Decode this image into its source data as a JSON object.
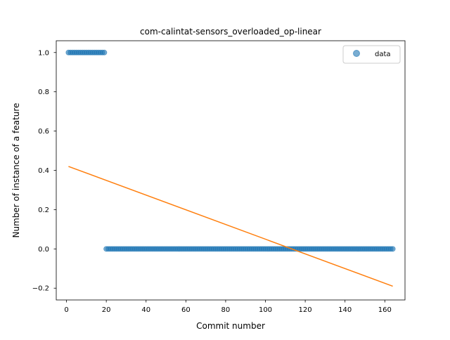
{
  "chart_data": {
    "type": "scatter",
    "title": "com-calintat-sensors_overloaded_op-linear",
    "xlabel": "Commit number",
    "ylabel": "Number of instance of a feature",
    "xlim": [
      -5.15,
      170.15
    ],
    "ylim": [
      -0.26,
      1.06
    ],
    "x_ticks": [
      0,
      20,
      40,
      60,
      80,
      100,
      120,
      140,
      160
    ],
    "x_tick_labels": [
      "0",
      "20",
      "40",
      "60",
      "80",
      "100",
      "120",
      "140",
      "160"
    ],
    "y_ticks": [
      -0.2,
      0.0,
      0.2,
      0.4,
      0.6,
      0.8,
      1.0
    ],
    "y_tick_labels": [
      "−0.2",
      "0.0",
      "0.2",
      "0.4",
      "0.6",
      "0.8",
      "1.0"
    ],
    "grid": false,
    "legend_position": "top-right",
    "series": [
      {
        "name": "data",
        "kind": "scatter",
        "color": "#1f77b4",
        "segments": [
          {
            "x_start": 1,
            "x_end": 19,
            "y": 1
          },
          {
            "x_start": 20,
            "x_end": 164,
            "y": 0
          }
        ]
      },
      {
        "kind": "line",
        "color": "#ff7f0e",
        "x": [
          1,
          164
        ],
        "y": [
          0.42,
          -0.19
        ]
      }
    ]
  }
}
